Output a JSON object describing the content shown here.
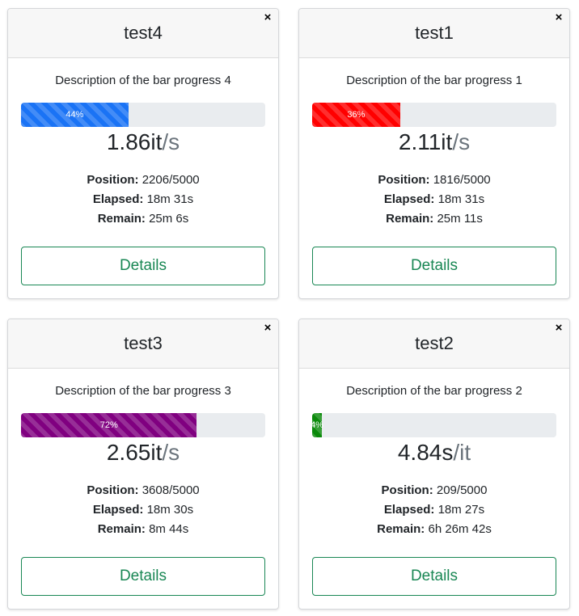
{
  "cards": [
    {
      "title": "test4",
      "close_glyph": "×",
      "description": "Description of the bar progress 4",
      "progress": {
        "percent": 44,
        "label": "44%",
        "color": "#1a73f5"
      },
      "rate": {
        "value": "1.86it",
        "unit": "/s"
      },
      "position_label": "Position:",
      "position_value": "2206/5000",
      "elapsed_label": "Elapsed:",
      "elapsed_value": "18m 31s",
      "remain_label": "Remain:",
      "remain_value": "25m 6s",
      "details_label": "Details"
    },
    {
      "title": "test1",
      "close_glyph": "×",
      "description": "Description of the bar progress 1",
      "progress": {
        "percent": 36,
        "label": "36%",
        "color": "#ff0000"
      },
      "rate": {
        "value": "2.11it",
        "unit": "/s"
      },
      "position_label": "Position:",
      "position_value": "1816/5000",
      "elapsed_label": "Elapsed:",
      "elapsed_value": "18m 31s",
      "remain_label": "Remain:",
      "remain_value": "25m 11s",
      "details_label": "Details"
    },
    {
      "title": "test3",
      "close_glyph": "×",
      "description": "Description of the bar progress 3",
      "progress": {
        "percent": 72,
        "label": "72%",
        "color": "#800080"
      },
      "rate": {
        "value": "2.65it",
        "unit": "/s"
      },
      "position_label": "Position:",
      "position_value": "3608/5000",
      "elapsed_label": "Elapsed:",
      "elapsed_value": "18m 30s",
      "remain_label": "Remain:",
      "remain_value": "8m 44s",
      "details_label": "Details"
    },
    {
      "title": "test2",
      "close_glyph": "×",
      "description": "Description of the bar progress 2",
      "progress": {
        "percent": 4,
        "label": "4%",
        "color": "#0b8a0b"
      },
      "rate": {
        "value": "4.84s",
        "unit": "/it"
      },
      "position_label": "Position:",
      "position_value": "209/5000",
      "elapsed_label": "Elapsed:",
      "elapsed_value": "18m 27s",
      "remain_label": "Remain:",
      "remain_value": "6h 26m 42s",
      "details_label": "Details"
    }
  ]
}
